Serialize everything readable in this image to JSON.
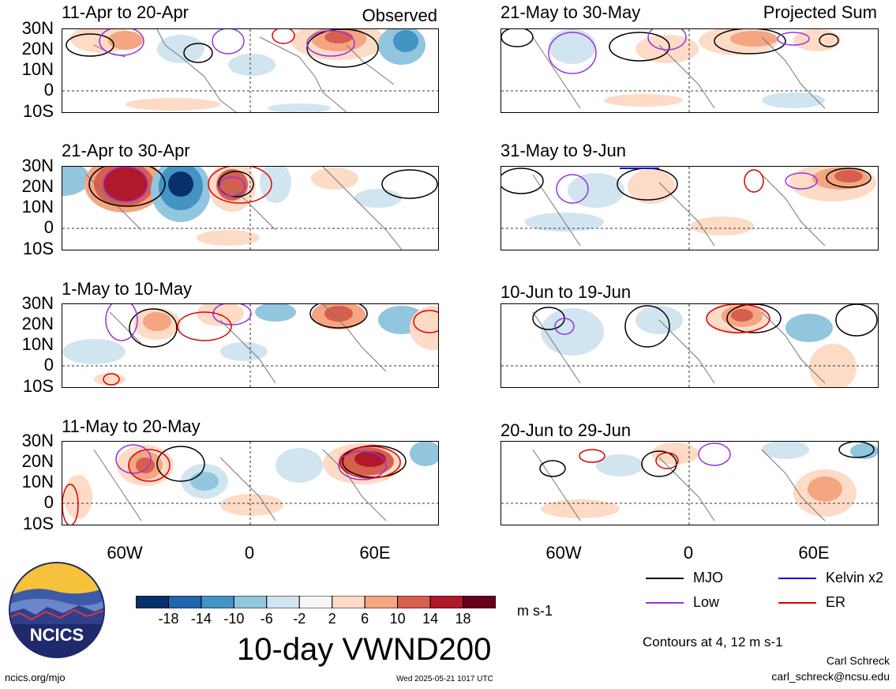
{
  "panels_left": [
    {
      "title": "11-Apr to 20-Apr",
      "tag": "Observed"
    },
    {
      "title": "21-Apr to 30-Apr",
      "tag": ""
    },
    {
      "title": "1-May to 10-May",
      "tag": ""
    },
    {
      "title": "11-May to 20-May",
      "tag": ""
    }
  ],
  "panels_right": [
    {
      "title": "21-May to 30-May",
      "tag": "Projected Sum"
    },
    {
      "title": "31-May to 9-Jun",
      "tag": ""
    },
    {
      "title": "10-Jun to 19-Jun",
      "tag": ""
    },
    {
      "title": "20-Jun to 29-Jun",
      "tag": ""
    }
  ],
  "lat_labels": [
    "30N",
    "20N",
    "10N",
    "0",
    "10S"
  ],
  "lon_labels": [
    "60W",
    "0",
    "60E"
  ],
  "colorbar": {
    "colors": [
      "#08306b",
      "#2166ac",
      "#4393c3",
      "#92c5de",
      "#d1e5f0",
      "#f7f7f7",
      "#fddbc7",
      "#f4a582",
      "#d6604d",
      "#b2182b",
      "#67001f"
    ],
    "labels": [
      "-18",
      "-14",
      "-10",
      "-6",
      "-2",
      "2",
      "6",
      "10",
      "14",
      "18"
    ],
    "units": "m s-1"
  },
  "title": "10-day VWND200",
  "legend": [
    {
      "label": "MJO",
      "color": "#000000"
    },
    {
      "label": "Kelvin x2",
      "color": "#0000dd"
    },
    {
      "label": "Low",
      "color": "#9933dd"
    },
    {
      "label": "ER",
      "color": "#dd0000"
    }
  ],
  "contour_note": "Contours at 4, 12 m s-1",
  "author": "Carl Schreck",
  "email": "carl_schreck@ncsu.edu",
  "site": "ncics.org/mjo",
  "timestamp": "Wed 2025-05-21 1017 UTC",
  "logo_text": "NCICS"
}
